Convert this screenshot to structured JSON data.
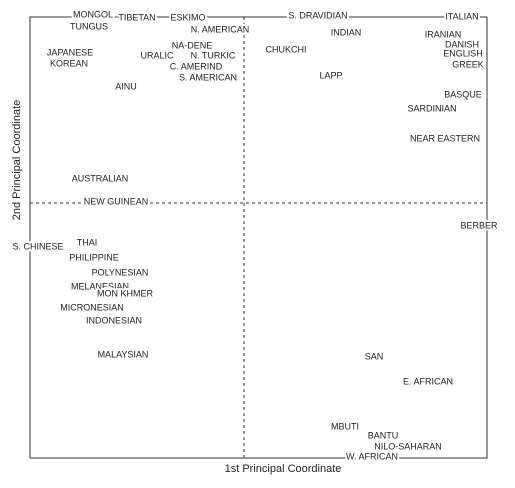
{
  "chart_data": {
    "type": "scatter",
    "xlabel": "1st Principal  Coordinate",
    "ylabel": "2nd Principal  Coordinate",
    "labels": [
      "MONGOL",
      "TUNGUS",
      "TIBETAN",
      "ESKIMO",
      "N. AMERICAN",
      "S. DRAVIDIAN",
      "ITALIAN",
      "INDIAN",
      "IRANIAN",
      "DANISH",
      "ENGLISH",
      "GREEK",
      "JAPANESE",
      "KOREAN",
      "NA-DENE",
      "URALIC",
      "N. TURKIC",
      "CHUKCHI",
      "C. AMERIND",
      "S. AMERICAN",
      "LAPP",
      "AINU",
      "BASQUE",
      "SARDINIAN",
      "NEAR EASTERN",
      "AUSTRALIAN",
      "NEW GUINEAN",
      "BERBER",
      "S. CHINESE",
      "THAI",
      "PHILIPPINE",
      "POLYNESIAN",
      "MELANESIAN",
      "MON KHMER",
      "MICRONESIAN",
      "INDONESIAN",
      "MALAYSIAN",
      "SAN",
      "E. AFRICAN",
      "MBUTI",
      "BANTU",
      "NILO-SAHARAN",
      "W. AFRICAN"
    ],
    "x": [
      -1.51,
      -1.55,
      -1.07,
      -0.56,
      -0.24,
      0.74,
      2.18,
      1.02,
      1.99,
      2.18,
      2.19,
      2.24,
      -1.74,
      -1.75,
      -0.52,
      -0.87,
      -0.31,
      0.42,
      -0.48,
      -0.36,
      0.87,
      -1.18,
      2.19,
      1.88,
      2.01,
      -1.44,
      -1.28,
      2.35,
      -2.06,
      -1.57,
      -1.5,
      -1.24,
      -1.44,
      -1.19,
      -1.52,
      -1.3,
      -1.21,
      1.3,
      1.84,
      1.01,
      1.39,
      1.64,
      1.28
    ],
    "values": [
      1.88,
      1.76,
      1.85,
      1.85,
      1.73,
      1.87,
      1.86,
      1.7,
      1.68,
      1.58,
      1.49,
      1.38,
      1.5,
      1.39,
      1.57,
      1.47,
      1.47,
      1.53,
      1.36,
      1.25,
      1.27,
      1.16,
      1.08,
      0.94,
      0.64,
      0.24,
      0.01,
      -0.23,
      -0.44,
      -0.4,
      -0.55,
      -0.7,
      -0.84,
      -0.91,
      -1.05,
      -1.18,
      -1.52,
      -1.54,
      -1.79,
      -2.24,
      -2.33,
      -2.44,
      -2.54
    ],
    "xlim": [
      -2.14,
      2.43
    ],
    "ylim": [
      -2.55,
      1.86
    ],
    "origin_lines": true,
    "color": "#222222"
  }
}
